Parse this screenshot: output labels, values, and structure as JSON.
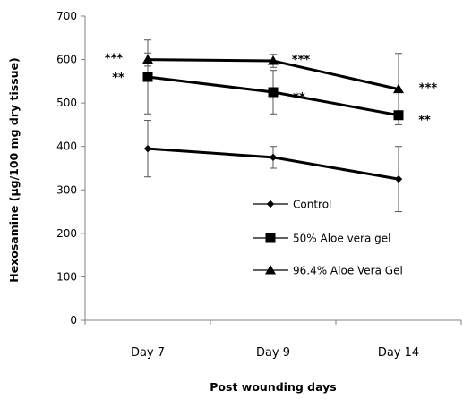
{
  "chart_data": {
    "type": "line",
    "categories": [
      "Day 7",
      "Day 9",
      "Day 14"
    ],
    "xlabel": "Post wounding days",
    "ylabel": "Hexosamine (μg/100 mg dry tissue)",
    "ylim": [
      0,
      700
    ],
    "yticks": [
      0,
      100,
      200,
      300,
      400,
      500,
      600,
      700
    ],
    "grid": false,
    "legend_position": "right",
    "series": [
      {
        "name": "Control",
        "marker": "diamond",
        "values": [
          395,
          375,
          325
        ],
        "error": [
          65,
          25,
          75
        ],
        "significance": [
          "",
          "",
          ""
        ]
      },
      {
        "name": "50% Aloe vera gel",
        "marker": "square",
        "values": [
          560,
          525,
          472
        ],
        "error": [
          85,
          50,
          0
        ],
        "significance": [
          "**",
          "**",
          "**"
        ]
      },
      {
        "name": "96.4% Aloe Vera Gel",
        "marker": "triangle",
        "values": [
          600,
          597,
          532
        ],
        "error": [
          15,
          15,
          82
        ],
        "significance": [
          "***",
          "***",
          "***"
        ]
      }
    ]
  }
}
